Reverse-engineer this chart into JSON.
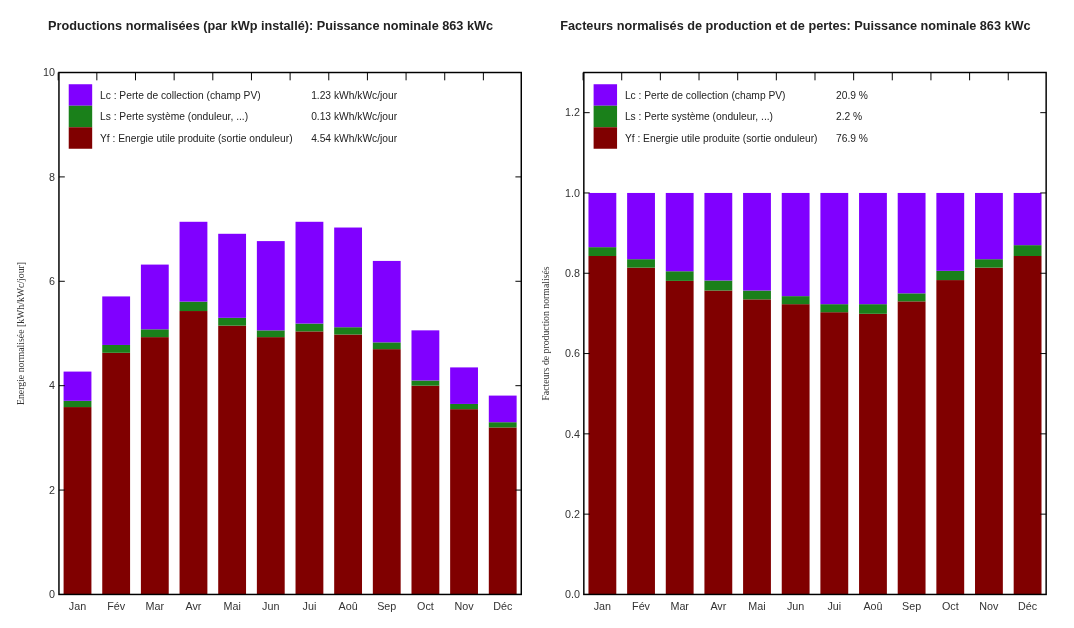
{
  "chart_data": [
    {
      "type": "bar",
      "title": "Productions normalisées (par kWp installé):  Puissance nominale 863 kWc",
      "ylabel": "Energie normalisée  [kWh/kWc/jour]",
      "categories": [
        "Jan",
        "Fév",
        "Mar",
        "Avr",
        "Mai",
        "Jun",
        "Jui",
        "Aoû",
        "Sep",
        "Oct",
        "Nov",
        "Déc"
      ],
      "stacked": true,
      "ylim": [
        0,
        10
      ],
      "yticks": [
        0,
        2,
        4,
        6,
        8,
        10
      ],
      "grid": false,
      "legend": "top left",
      "annotations": [
        "1.23 kWh/kWc/jour",
        "0.13 kWh/kWc/jour",
        "4.54 kWh/kWc/jour"
      ],
      "series": [
        {
          "name": "Yf : Energie utile produite  (sortie onduleur)",
          "color": "#800000",
          "values": [
            3.59,
            4.63,
            4.93,
            5.43,
            5.15,
            4.93,
            5.04,
            4.98,
            4.7,
            4.0,
            3.55,
            3.2
          ]
        },
        {
          "name": "Ls : Perte système  (onduleur, ...)",
          "color": "#1a801a",
          "values": [
            0.12,
            0.15,
            0.15,
            0.18,
            0.15,
            0.13,
            0.15,
            0.14,
            0.13,
            0.1,
            0.1,
            0.1
          ]
        },
        {
          "name": "Lc : Perte de collection (champ PV)",
          "color": "#8000ff",
          "values": [
            0.56,
            0.93,
            1.24,
            1.53,
            1.61,
            1.71,
            1.95,
            1.91,
            1.56,
            0.96,
            0.7,
            0.51
          ]
        }
      ]
    },
    {
      "type": "bar",
      "title": "Facteurs normalisés de production et de pertes:  Puissance nominale 863 kWc",
      "ylabel": "Facteurs de production normalisés",
      "categories": [
        "Jan",
        "Fév",
        "Mar",
        "Avr",
        "Mai",
        "Jun",
        "Jui",
        "Aoû",
        "Sep",
        "Oct",
        "Nov",
        "Déc"
      ],
      "stacked": true,
      "ylim": [
        0,
        1.3
      ],
      "yticks": [
        {
          "value": 0,
          "label": "0.0"
        },
        0.2,
        0.4,
        0.6,
        0.8,
        {
          "value": 1,
          "label": "1.0"
        },
        1.2
      ],
      "grid": false,
      "legend": "top left",
      "annotations": [
        "20.9 %",
        "2.2 %",
        "76.9 %"
      ],
      "series": [
        {
          "name": "Yf : Energie utile produite  (sortie onduleur)",
          "color": "#800000",
          "values": [
            0.843,
            0.814,
            0.781,
            0.757,
            0.735,
            0.723,
            0.703,
            0.699,
            0.73,
            0.783,
            0.814,
            0.843
          ]
        },
        {
          "name": "Ls : Perte système  (onduleur, ...)",
          "color": "#1a801a",
          "values": [
            0.022,
            0.021,
            0.024,
            0.025,
            0.022,
            0.02,
            0.02,
            0.024,
            0.02,
            0.023,
            0.021,
            0.027
          ]
        },
        {
          "name": "Lc : Perte de collection (champ PV)",
          "color": "#8000ff",
          "values": [
            0.135,
            0.165,
            0.195,
            0.218,
            0.243,
            0.257,
            0.277,
            0.277,
            0.25,
            0.194,
            0.165,
            0.13
          ]
        }
      ]
    }
  ]
}
